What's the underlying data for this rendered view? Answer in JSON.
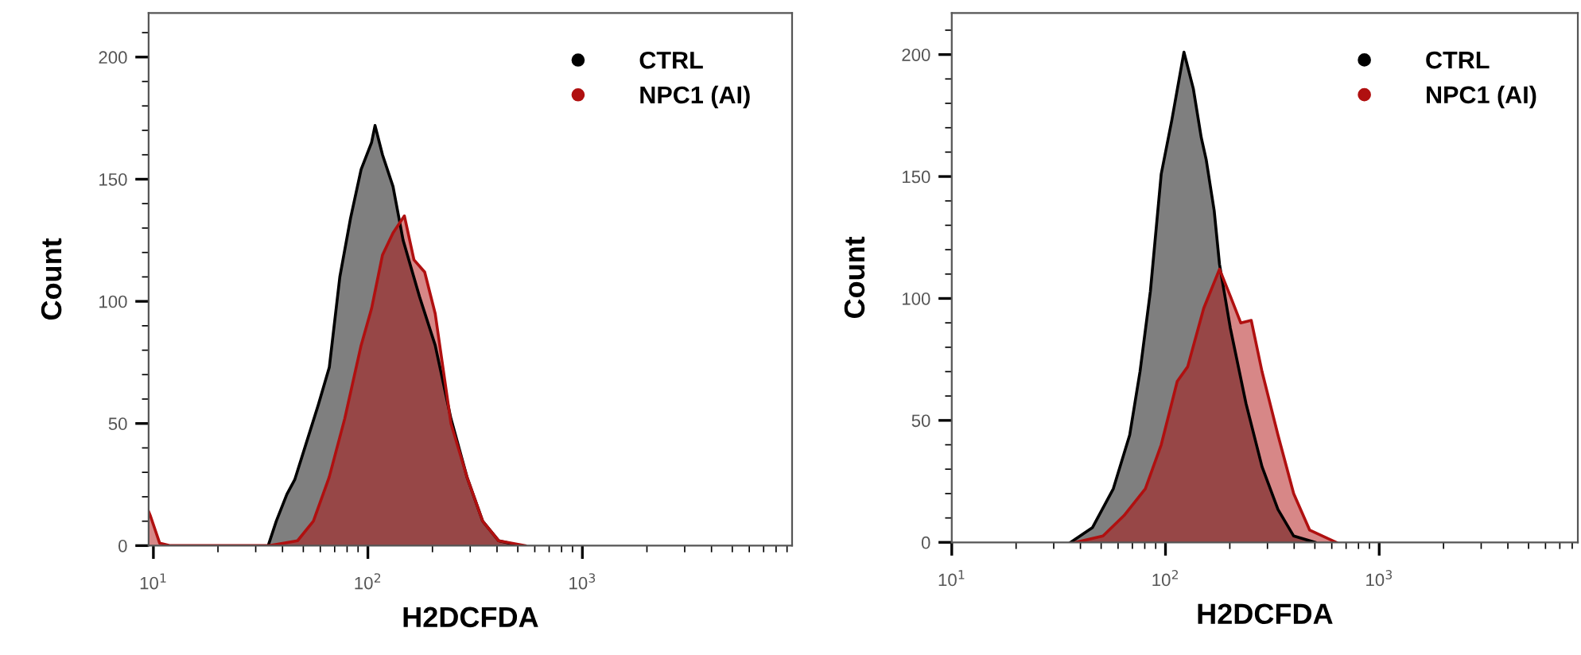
{
  "chart_data": [
    {
      "type": "area",
      "xlabel": "H2DCFDA",
      "ylabel": "Count",
      "log": "x",
      "xlim": [
        9.5,
        9500
      ],
      "ylim": [
        0,
        218
      ],
      "xticks": [
        {
          "value": 10,
          "label": "10$^{1}$"
        },
        {
          "value": 100,
          "label": "10$^{2}$"
        },
        {
          "value": 1000,
          "label": "10$^{3}$"
        }
      ],
      "yticks": [
        0,
        50,
        100,
        150,
        200
      ],
      "legend": "top right",
      "grid": false,
      "series": [
        {
          "name": "CTRL",
          "color": "#000000",
          "x": [
            34.3,
            37.4,
            41.9,
            45.6,
            51.2,
            58.9,
            66.1,
            74,
            83,
            93,
            104,
            108,
            117,
            131,
            146,
            174,
            206,
            244,
            290,
            343,
            407,
            511
          ],
          "values": [
            0,
            10,
            21,
            27,
            41,
            58,
            73,
            110,
            134,
            154,
            165,
            172,
            160,
            147,
            125,
            102,
            82,
            52,
            28,
            10,
            2,
            0
          ]
        },
        {
          "name": "NPC1 (AI)",
          "color": "#b01010",
          "x": [
            9.5,
            9.7,
            10.7,
            12,
            34.9,
            47,
            55.7,
            66,
            78,
            93,
            104,
            117,
            131,
            148,
            164,
            184,
            206,
            244,
            290,
            343,
            407,
            541
          ],
          "values": [
            14,
            12,
            1,
            0,
            0,
            2,
            10,
            28,
            52,
            82,
            97,
            119,
            128,
            135,
            117,
            112,
            95,
            50,
            28,
            10,
            2,
            0
          ]
        }
      ]
    },
    {
      "type": "area",
      "xlabel": "H2DCFDA",
      "ylabel": "Count",
      "log": "x",
      "xlim": [
        10,
        8500
      ],
      "ylim": [
        0,
        217
      ],
      "xticks": [
        {
          "value": 10,
          "label": "10$^{1}$"
        },
        {
          "value": 100,
          "label": "10$^{2}$"
        },
        {
          "value": 1000,
          "label": "10$^{3}$"
        }
      ],
      "yticks": [
        0,
        50,
        100,
        150,
        200
      ],
      "legend": "top right",
      "grid": false,
      "series": [
        {
          "name": "CTRL",
          "color": "#000000",
          "x": [
            36,
            45.5,
            57,
            68,
            76,
            85,
            95.5,
            107,
            122,
            135,
            147,
            155,
            169,
            179,
            201,
            238,
            283,
            336,
            398,
            501
          ],
          "values": [
            0,
            6,
            22,
            44,
            70,
            103,
            151,
            173,
            201,
            186,
            166,
            157,
            136,
            114,
            88,
            57,
            31,
            13.5,
            2.6,
            0
          ]
        },
        {
          "name": "NPC1 (AI)",
          "color": "#b01010",
          "x": [
            38,
            51,
            64,
            80.5,
            95.5,
            113.5,
            127,
            151,
            179,
            201,
            225,
            252,
            283,
            336,
            398,
            473,
            630
          ],
          "values": [
            0,
            2.6,
            11,
            22,
            40,
            66,
            72,
            96,
            112,
            101,
            90,
            91,
            70,
            44,
            20,
            5,
            0
          ]
        }
      ]
    }
  ]
}
